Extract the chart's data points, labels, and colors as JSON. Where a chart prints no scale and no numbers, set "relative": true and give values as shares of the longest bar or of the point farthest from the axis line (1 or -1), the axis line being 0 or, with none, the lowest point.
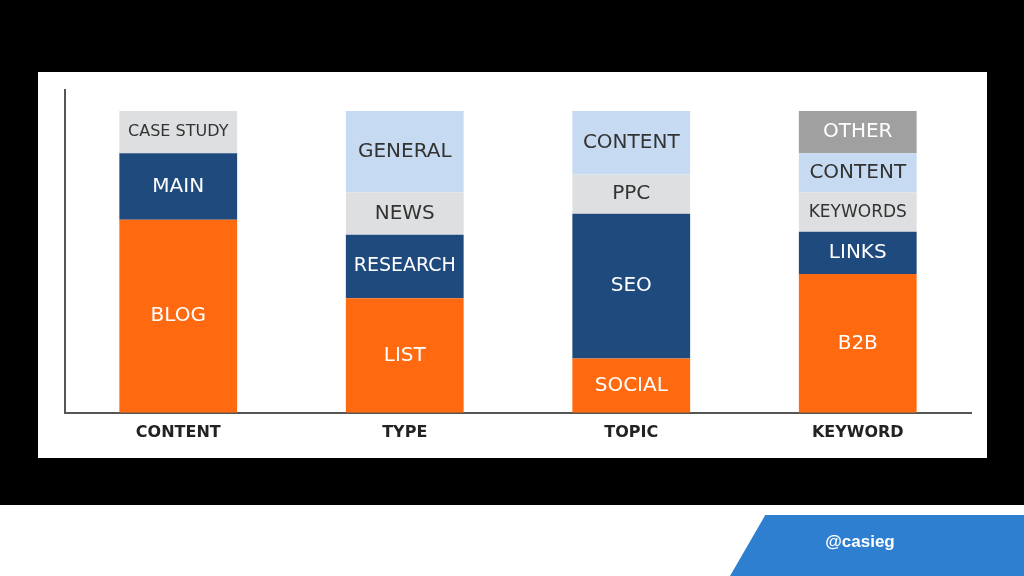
{
  "chart_data": {
    "type": "bar",
    "stacked": true,
    "relative": true,
    "categories": [
      "CONTENT",
      "TYPE",
      "TOPIC",
      "KEYWORD"
    ],
    "series": [
      {
        "name": "BLOG",
        "color": "#ff6a10",
        "values": [
          0.64,
          null,
          null,
          null
        ]
      },
      {
        "name": "MAIN",
        "color": "#1f4a7e",
        "values": [
          0.22,
          null,
          null,
          null
        ]
      },
      {
        "name": "CASE STUDY",
        "color": "#dedfe0",
        "values": [
          0.14,
          null,
          null,
          null
        ]
      },
      {
        "name": "LIST",
        "color": "#ff6a10",
        "values": [
          null,
          0.38,
          null,
          null
        ]
      },
      {
        "name": "RESEARCH",
        "color": "#1f4a7e",
        "values": [
          null,
          0.21,
          null,
          null
        ]
      },
      {
        "name": "NEWS",
        "color": "#dedfe0",
        "values": [
          null,
          0.14,
          null,
          null
        ]
      },
      {
        "name": "GENERAL",
        "color": "#c6daf2",
        "values": [
          null,
          0.27,
          null,
          null
        ]
      },
      {
        "name": "SOCIAL",
        "color": "#ff6a10",
        "values": [
          null,
          null,
          0.18,
          null
        ]
      },
      {
        "name": "SEO",
        "color": "#1f4a7e",
        "values": [
          null,
          null,
          0.48,
          null
        ]
      },
      {
        "name": "PPC",
        "color": "#dedfe0",
        "values": [
          null,
          null,
          0.13,
          null
        ]
      },
      {
        "name": "CONTENT",
        "color": "#c6daf2",
        "values": [
          null,
          null,
          0.21,
          null
        ]
      },
      {
        "name": "B2B",
        "color": "#ff6a10",
        "values": [
          null,
          null,
          null,
          0.46
        ]
      },
      {
        "name": "LINKS",
        "color": "#1f4a7e",
        "values": [
          null,
          null,
          null,
          0.14
        ]
      },
      {
        "name": "KEYWORDS",
        "color": "#dedfe0",
        "values": [
          null,
          null,
          null,
          0.13
        ]
      },
      {
        "name": "CONTENT",
        "color": "#c6daf2",
        "values": [
          null,
          null,
          null,
          0.13
        ]
      },
      {
        "name": "OTHER",
        "color": "#a0a0a0",
        "values": [
          null,
          null,
          null,
          0.14
        ]
      }
    ],
    "annotations": [
      "@casieg"
    ]
  }
}
